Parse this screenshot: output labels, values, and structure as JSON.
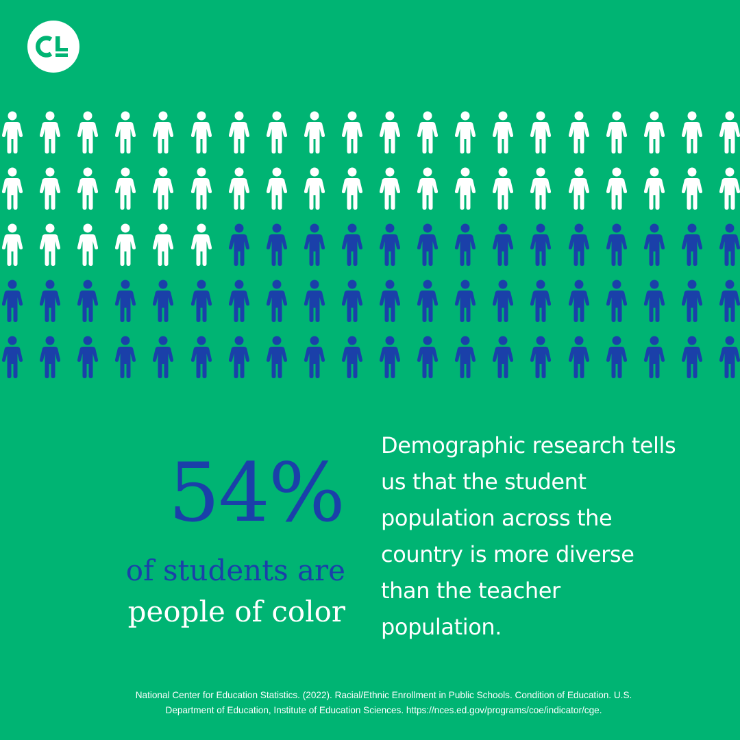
{
  "brand": {
    "logo_icon": "cl-logo-icon",
    "background_color": "#00B473",
    "highlight_color": "#1A40A9",
    "neutral_color": "#FFFFFF"
  },
  "chart_data": {
    "type": "pictograph",
    "icon": "person-icon",
    "rows": 5,
    "columns": 20,
    "total_icons": 100,
    "highlighted_icons": 54,
    "highlight_color": "#1A40A9",
    "base_color": "#FFFFFF",
    "highlighted_label": "people of color"
  },
  "stat": {
    "value": "54%",
    "line1": "of students are",
    "line2": "people of color"
  },
  "description": {
    "lines": [
      "Demographic research tells",
      "us that the student",
      "population across the",
      "country is more diverse",
      "than the teacher",
      "population."
    ]
  },
  "citation": {
    "lines": [
      "National Center for Education Statistics. (2022). Racial/Ethnic Enrollment in Public Schools. Condition of Education. U.S.",
      "Department of Education, Institute of Education Sciences. https://nces.ed.gov/programs/coe/indicator/cge."
    ]
  }
}
